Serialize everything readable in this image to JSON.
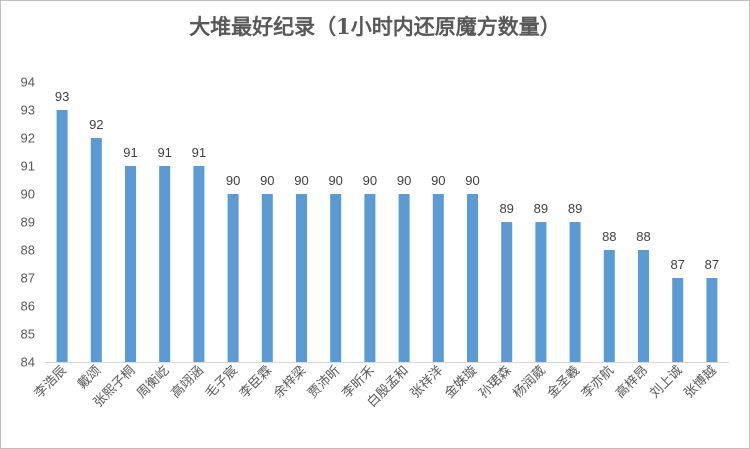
{
  "chart_data": {
    "type": "bar",
    "title": "大堆最好纪录（1小时内还原魔方数量）",
    "categories": [
      "李浩辰",
      "戴颂",
      "张熙子桐",
      "周衡屹",
      "高翊涵",
      "毛子宸",
      "李臣霖",
      "余梓梁",
      "贾沛昕",
      "李昕禾",
      "白殷孟和",
      "张祥洋",
      "金姝璇",
      "孙珺森",
      "杨润葳",
      "金圣羲",
      "李亦航",
      "高梓昂",
      "刘上诚",
      "张博越"
    ],
    "series": [
      {
        "values": [
          93,
          92,
          91,
          91,
          91,
          90,
          90,
          90,
          90,
          90,
          90,
          90,
          90,
          89,
          89,
          89,
          88,
          88,
          87,
          87
        ]
      }
    ],
    "ylim": [
      84,
      94
    ],
    "yticks": [
      84,
      85,
      86,
      87,
      88,
      89,
      90,
      91,
      92,
      93,
      94
    ],
    "grid": false,
    "data_labels": true,
    "colors": {
      "bar": "#5b9bd5",
      "axis": "#d9d9d9"
    }
  }
}
